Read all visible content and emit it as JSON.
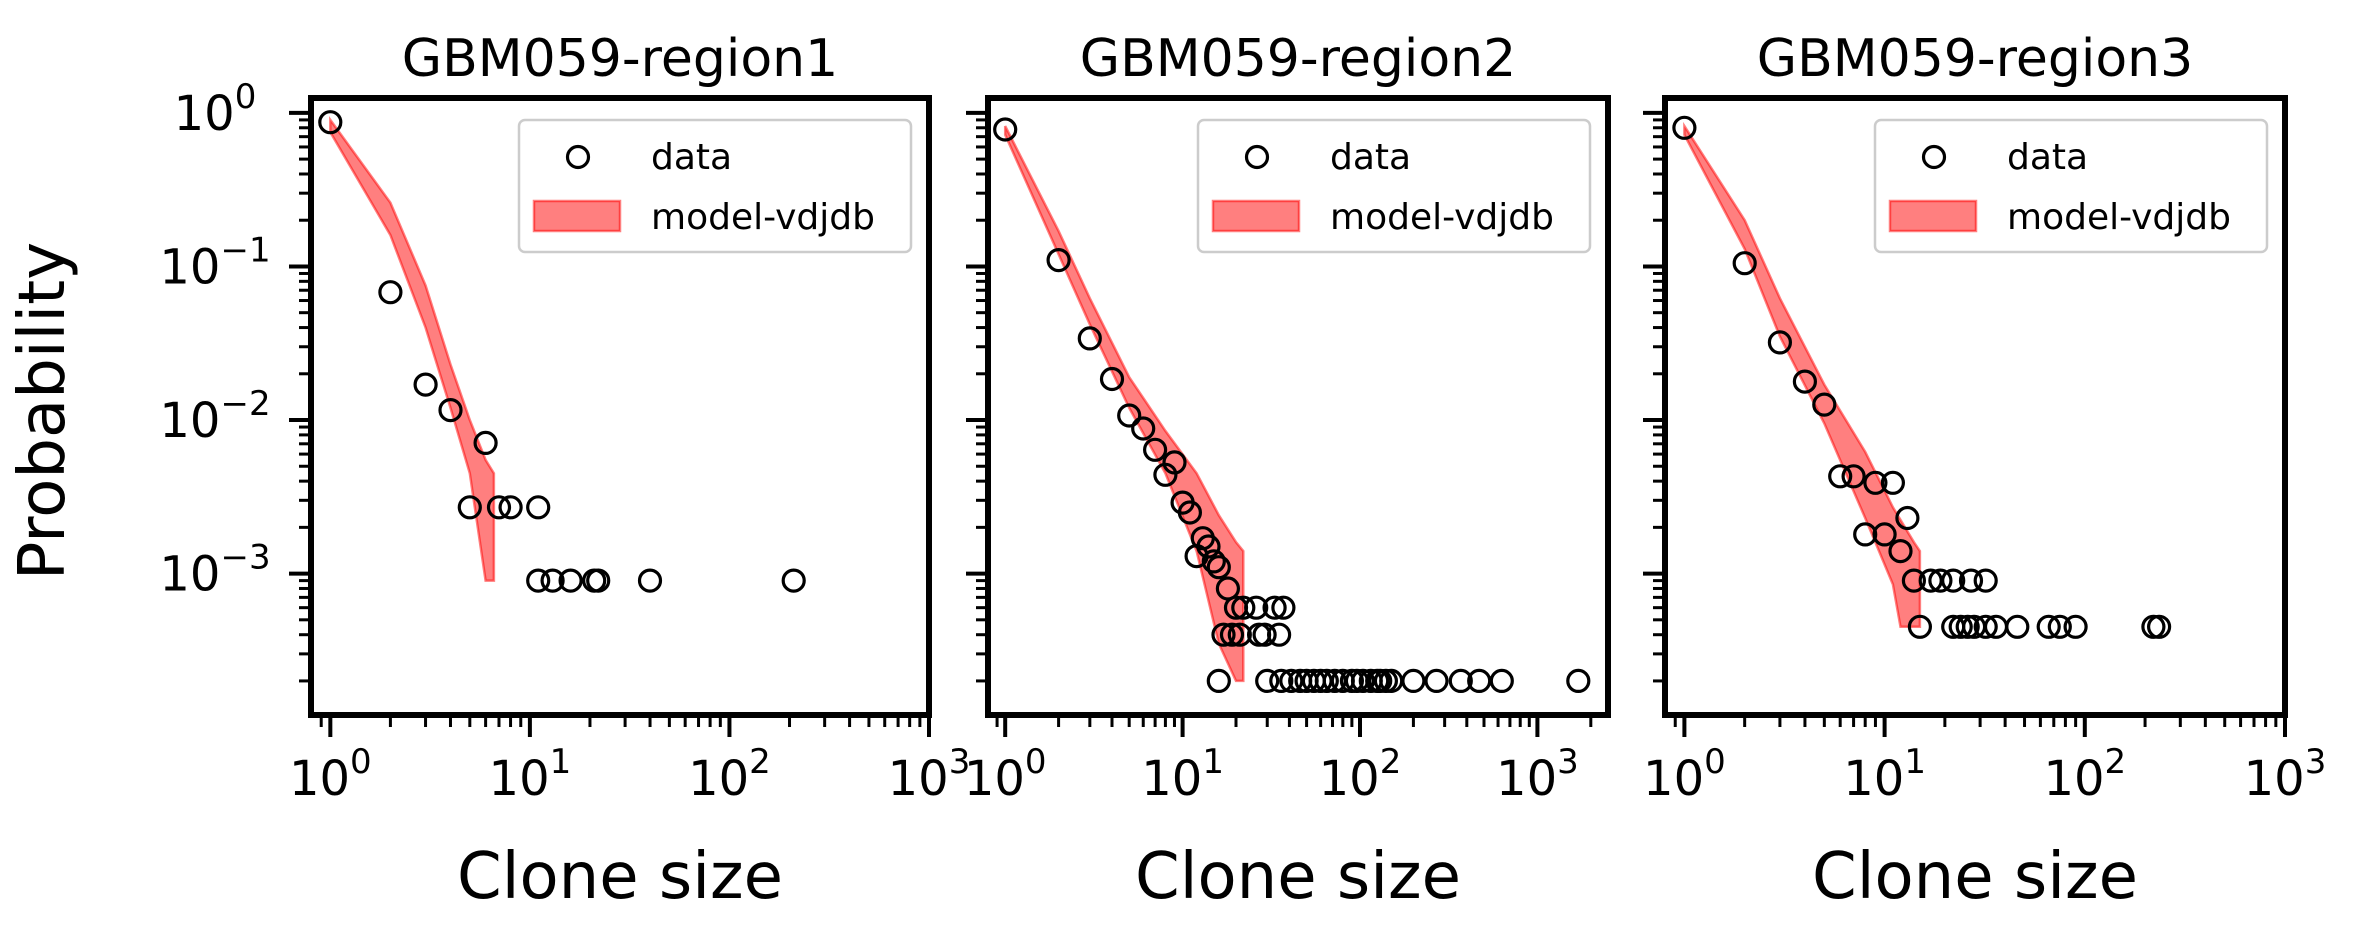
{
  "figure": {
    "ylabel": "Probability"
  },
  "chart_data": [
    {
      "type": "scatter",
      "title": "GBM059-region1",
      "xlabel": "Clone size",
      "ylabel": "Probability",
      "x_scale": "log",
      "y_scale": "log",
      "xlim": [
        0.8,
        1000
      ],
      "ylim": [
        0.00012,
        1.25
      ],
      "x_ticks": [
        1,
        10,
        100,
        1000
      ],
      "y_ticks": [
        1,
        0.1,
        0.01,
        0.001
      ],
      "tick_labels": {
        "x": [
          {
            "base": "10",
            "exp": "0"
          },
          {
            "base": "10",
            "exp": "1"
          },
          {
            "base": "10",
            "exp": "2"
          },
          {
            "base": "10",
            "exp": "3"
          }
        ],
        "y": [
          {
            "base": "10",
            "exp": "0"
          },
          {
            "base": "10",
            "exp": "−1"
          },
          {
            "base": "10",
            "exp": "−2"
          },
          {
            "base": "10",
            "exp": "−3"
          }
        ]
      },
      "legend": {
        "location": "upper right",
        "entries": [
          "data",
          "model-vdjdb"
        ]
      },
      "series": [
        {
          "name": "data",
          "kind": "scatter",
          "points": [
            [
              1,
              0.87
            ],
            [
              2,
              0.068
            ],
            [
              3,
              0.017
            ],
            [
              4,
              0.0116
            ],
            [
              5,
              0.0027
            ],
            [
              6,
              0.0071
            ],
            [
              7,
              0.0027
            ],
            [
              8,
              0.0027
            ],
            [
              11,
              0.0027
            ],
            [
              11,
              0.0009
            ],
            [
              13,
              0.0009
            ],
            [
              16,
              0.0009
            ],
            [
              21,
              0.0009
            ],
            [
              22,
              0.0009
            ],
            [
              40,
              0.0009
            ],
            [
              210,
              0.0009
            ]
          ]
        },
        {
          "name": "model-vdjdb",
          "kind": "band",
          "color": "#ff0000",
          "upper": [
            [
              1,
              0.9
            ],
            [
              2,
              0.26
            ],
            [
              3,
              0.075
            ],
            [
              4,
              0.023
            ],
            [
              5,
              0.01
            ],
            [
              6,
              0.0055
            ],
            [
              6.6,
              0.0045
            ]
          ],
          "lower": [
            [
              1,
              0.75
            ],
            [
              2,
              0.16
            ],
            [
              3,
              0.04
            ],
            [
              4,
              0.012
            ],
            [
              5,
              0.0045
            ],
            [
              6,
              0.0009
            ],
            [
              6.6,
              0.0009
            ]
          ]
        }
      ]
    },
    {
      "type": "scatter",
      "title": "GBM059-region2",
      "xlabel": "Clone size",
      "x_scale": "log",
      "y_scale": "log",
      "xlim": [
        0.8,
        2500
      ],
      "ylim": [
        0.00012,
        1.25
      ],
      "x_ticks": [
        1,
        10,
        100,
        1000
      ],
      "y_ticks": [
        1,
        0.1,
        0.01,
        0.001
      ],
      "tick_labels": {
        "x": [
          {
            "base": "10",
            "exp": "0"
          },
          {
            "base": "10",
            "exp": "1"
          },
          {
            "base": "10",
            "exp": "2"
          },
          {
            "base": "10",
            "exp": "3"
          }
        ]
      },
      "legend": {
        "location": "upper right",
        "entries": [
          "data",
          "model-vdjdb"
        ]
      },
      "series": [
        {
          "name": "data",
          "kind": "scatter",
          "points": [
            [
              1,
              0.78
            ],
            [
              2,
              0.11
            ],
            [
              3,
              0.034
            ],
            [
              4,
              0.0185
            ],
            [
              5,
              0.0107
            ],
            [
              6,
              0.0088
            ],
            [
              7,
              0.0064
            ],
            [
              8,
              0.0044
            ],
            [
              9,
              0.0053
            ],
            [
              10,
              0.0029
            ],
            [
              11,
              0.0025
            ],
            [
              12,
              0.0013
            ],
            [
              13,
              0.0017
            ],
            [
              14,
              0.0015
            ],
            [
              15,
              0.0012
            ],
            [
              16,
              0.0011
            ],
            [
              17,
              0.0004
            ],
            [
              18,
              0.0008
            ],
            [
              19,
              0.0004
            ],
            [
              20,
              0.0006
            ],
            [
              21,
              0.0004
            ],
            [
              22,
              0.0006
            ],
            [
              16,
              0.0002
            ],
            [
              26,
              0.0006
            ],
            [
              27,
              0.0004
            ],
            [
              29,
              0.0004
            ],
            [
              30,
              0.0002
            ],
            [
              33,
              0.0006
            ],
            [
              35,
              0.0004
            ],
            [
              37,
              0.0006
            ],
            [
              36,
              0.0002
            ],
            [
              41,
              0.0002
            ],
            [
              46,
              0.0002
            ],
            [
              50,
              0.0002
            ],
            [
              55,
              0.0002
            ],
            [
              60,
              0.0002
            ],
            [
              65,
              0.0002
            ],
            [
              72,
              0.0002
            ],
            [
              80,
              0.0002
            ],
            [
              90,
              0.0002
            ],
            [
              96,
              0.0002
            ],
            [
              104,
              0.0002
            ],
            [
              115,
              0.0002
            ],
            [
              125,
              0.0002
            ],
            [
              130,
              0.0002
            ],
            [
              140,
              0.0002
            ],
            [
              150,
              0.0002
            ],
            [
              200,
              0.0002
            ],
            [
              270,
              0.0002
            ],
            [
              370,
              0.0002
            ],
            [
              470,
              0.0002
            ],
            [
              630,
              0.0002
            ],
            [
              1700,
              0.0002
            ]
          ]
        },
        {
          "name": "model-vdjdb",
          "kind": "band",
          "color": "#ff0000",
          "upper": [
            [
              1,
              0.82
            ],
            [
              2,
              0.17
            ],
            [
              3,
              0.062
            ],
            [
              5,
              0.019
            ],
            [
              8,
              0.0085
            ],
            [
              12,
              0.0045
            ],
            [
              16,
              0.0024
            ],
            [
              20,
              0.0016
            ],
            [
              22,
              0.0014
            ]
          ],
          "lower": [
            [
              1,
              0.72
            ],
            [
              2,
              0.12
            ],
            [
              3,
              0.042
            ],
            [
              5,
              0.012
            ],
            [
              8,
              0.0045
            ],
            [
              12,
              0.0014
            ],
            [
              16,
              0.00035
            ],
            [
              20,
              0.0002
            ],
            [
              22,
              0.0002
            ]
          ]
        }
      ]
    },
    {
      "type": "scatter",
      "title": "GBM059-region3",
      "xlabel": "Clone size",
      "x_scale": "log",
      "y_scale": "log",
      "xlim": [
        0.8,
        1000
      ],
      "ylim": [
        0.00012,
        1.25
      ],
      "x_ticks": [
        1,
        10,
        100,
        1000
      ],
      "y_ticks": [
        1,
        0.1,
        0.01,
        0.001
      ],
      "tick_labels": {
        "x": [
          {
            "base": "10",
            "exp": "0"
          },
          {
            "base": "10",
            "exp": "1"
          },
          {
            "base": "10",
            "exp": "2"
          },
          {
            "base": "10",
            "exp": "3"
          }
        ]
      },
      "legend": {
        "location": "upper right",
        "entries": [
          "data",
          "model-vdjdb"
        ]
      },
      "series": [
        {
          "name": "data",
          "kind": "scatter",
          "points": [
            [
              1,
              0.8
            ],
            [
              2,
              0.105
            ],
            [
              3,
              0.032
            ],
            [
              4,
              0.0178
            ],
            [
              5,
              0.0126
            ],
            [
              6,
              0.0043
            ],
            [
              7,
              0.0043
            ],
            [
              8,
              0.0018
            ],
            [
              9,
              0.0039
            ],
            [
              10,
              0.0018
            ],
            [
              11,
              0.0039
            ],
            [
              12,
              0.0014
            ],
            [
              13,
              0.0023
            ],
            [
              14,
              0.0009
            ],
            [
              15,
              0.00045
            ],
            [
              17,
              0.0009
            ],
            [
              19,
              0.0009
            ],
            [
              22,
              0.0009
            ],
            [
              27,
              0.0009
            ],
            [
              32,
              0.0009
            ],
            [
              22,
              0.00045
            ],
            [
              24,
              0.00045
            ],
            [
              26,
              0.00045
            ],
            [
              28,
              0.00045
            ],
            [
              32,
              0.00045
            ],
            [
              36,
              0.00045
            ],
            [
              46,
              0.00045
            ],
            [
              66,
              0.00045
            ],
            [
              75,
              0.00045
            ],
            [
              90,
              0.00045
            ],
            [
              220,
              0.00045
            ],
            [
              235,
              0.00045
            ]
          ]
        },
        {
          "name": "model-vdjdb",
          "kind": "band",
          "color": "#ff0000",
          "upper": [
            [
              1,
              0.82
            ],
            [
              2,
              0.2
            ],
            [
              3,
              0.062
            ],
            [
              5,
              0.017
            ],
            [
              8,
              0.0062
            ],
            [
              11,
              0.0027
            ],
            [
              14,
              0.0016
            ],
            [
              15,
              0.0014
            ]
          ],
          "lower": [
            [
              1,
              0.72
            ],
            [
              2,
              0.13
            ],
            [
              3,
              0.035
            ],
            [
              5,
              0.0095
            ],
            [
              8,
              0.0023
            ],
            [
              11,
              0.00085
            ],
            [
              12,
              0.00045
            ],
            [
              15,
              0.00045
            ]
          ]
        }
      ]
    }
  ]
}
